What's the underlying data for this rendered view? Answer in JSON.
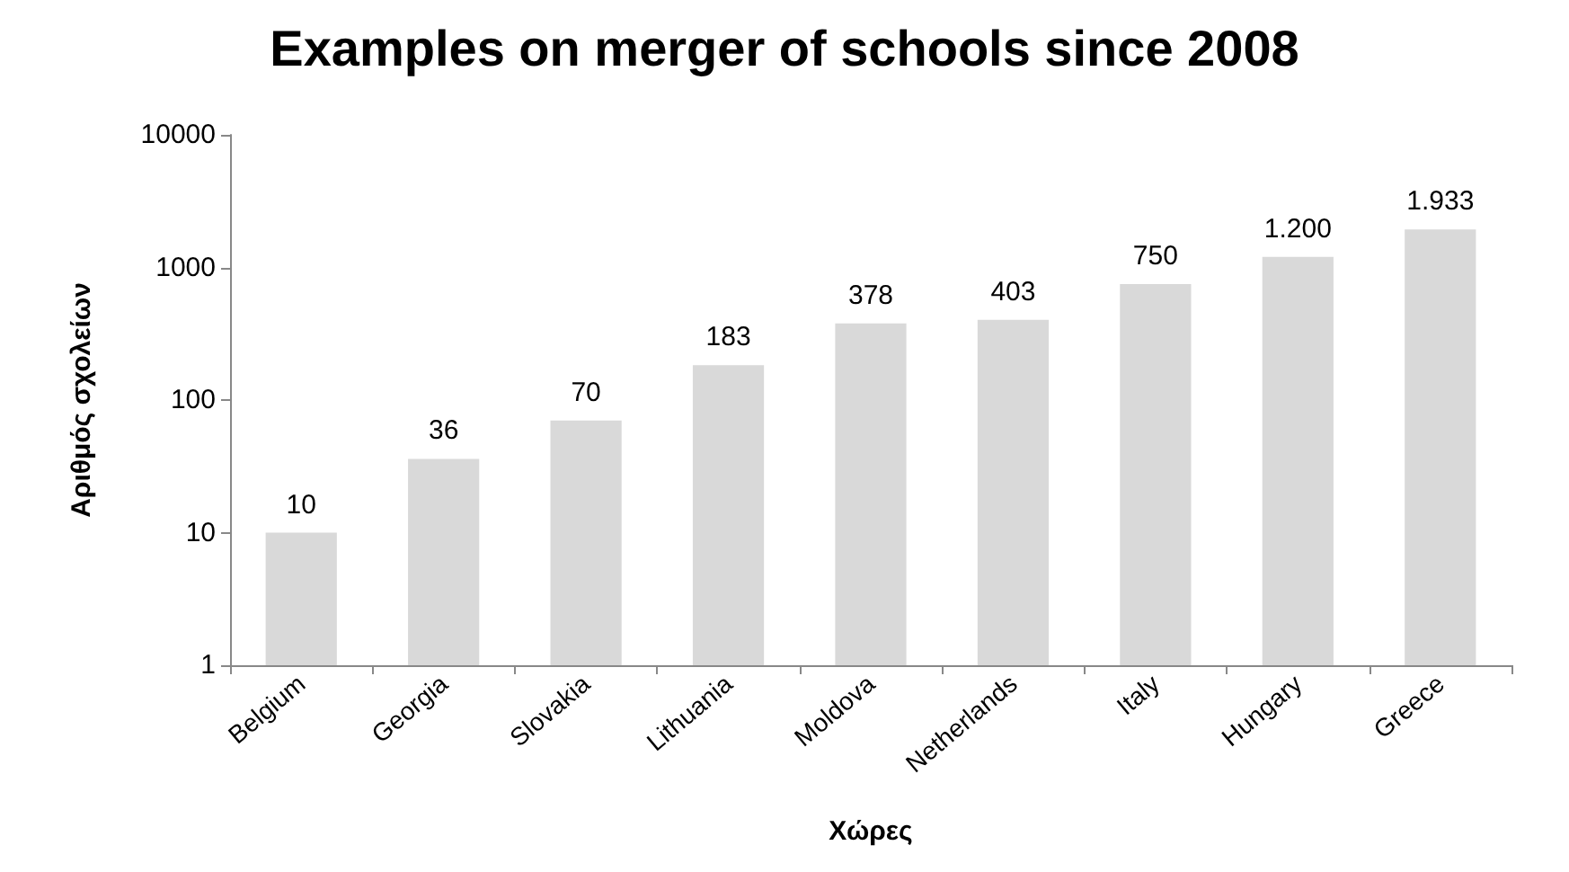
{
  "chart_data": {
    "type": "bar",
    "title": "Examples on merger of schools since 2008",
    "xlabel": "Χώρες",
    "ylabel": "Αριθμός σχολείων",
    "categories": [
      "Belgium",
      "Georgia",
      "Slovakia",
      "Lithuania",
      "Moldova",
      "Netherlands",
      "Italy",
      "Hungary",
      "Greece"
    ],
    "values": [
      10,
      36,
      70,
      183,
      378,
      403,
      750,
      1200,
      1933
    ],
    "value_labels": [
      "10",
      "36",
      "70",
      "183",
      "378",
      "403",
      "750",
      "1.200",
      "1.933"
    ],
    "color": "#d9d9d9",
    "log": true,
    "ylim": [
      1,
      10000
    ],
    "yticks": [
      1,
      10,
      100,
      1000,
      10000
    ],
    "grid": false
  }
}
